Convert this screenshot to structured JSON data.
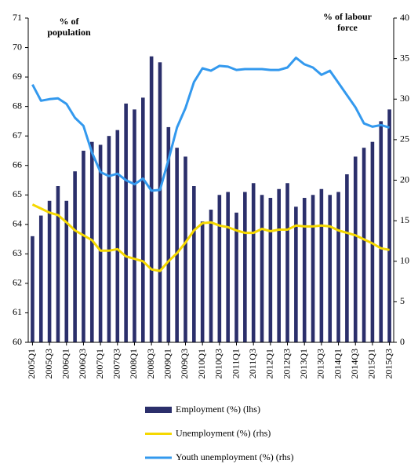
{
  "chart_data": {
    "type": "combo",
    "y_label": "% of population",
    "y2_label": "% of labour force",
    "categories": [
      "2005Q1",
      null,
      "2005Q3",
      null,
      "2006Q1",
      null,
      "2006Q3",
      null,
      "2007Q1",
      null,
      "2007Q3",
      null,
      "2008Q1",
      null,
      "2008Q3",
      null,
      "2009Q1",
      null,
      "2009Q3",
      null,
      "2010Q1",
      null,
      "2010Q3",
      null,
      "2011Q1",
      null,
      "2011Q3",
      null,
      "2012Q1",
      null,
      "2012Q3",
      null,
      "2013Q1",
      null,
      "2013Q3",
      null,
      "2014Q1",
      null,
      "2014Q3",
      null,
      "2015Q1",
      null,
      "2015Q3"
    ],
    "ylim": [
      60,
      71
    ],
    "yticks": [
      60,
      61,
      62,
      63,
      64,
      65,
      66,
      67,
      68,
      69,
      70,
      71
    ],
    "y2lim": [
      0,
      40
    ],
    "y2ticks": [
      0,
      5,
      10,
      15,
      20,
      25,
      30,
      35,
      40
    ],
    "grid": false,
    "series": [
      {
        "name": "Employment  (%) (lhs)",
        "type": "bar",
        "color": "#2b2f6b",
        "values": [
          63.6,
          64.3,
          64.8,
          65.3,
          64.8,
          65.8,
          66.5,
          66.8,
          66.7,
          67.0,
          67.2,
          68.1,
          67.9,
          68.3,
          69.7,
          69.5,
          67.3,
          66.6,
          66.3,
          65.3,
          64.1,
          64.5,
          65.0,
          65.1,
          64.4,
          65.1,
          65.4,
          65.0,
          64.9,
          65.2,
          65.4,
          64.6,
          64.9,
          65.0,
          65.2,
          65.0,
          65.1,
          65.7,
          66.3,
          66.6,
          66.8,
          67.5,
          67.9
        ]
      },
      {
        "name": "Unemployment (%) (rhs)",
        "type": "line",
        "axis": "y2",
        "color": "#f5d800",
        "values": [
          17.0,
          16.5,
          16.0,
          15.7,
          14.8,
          13.8,
          13.2,
          12.6,
          11.3,
          11.3,
          11.5,
          10.6,
          10.3,
          10.0,
          9.0,
          8.8,
          10.0,
          11.0,
          12.3,
          13.8,
          14.7,
          14.8,
          14.4,
          14.2,
          13.8,
          13.5,
          13.5,
          14.0,
          13.7,
          13.9,
          13.9,
          14.4,
          14.3,
          14.3,
          14.4,
          14.3,
          13.8,
          13.5,
          13.2,
          12.7,
          12.2,
          11.6,
          11.4
        ]
      },
      {
        "name": "Youth unemployment (%) (rhs)",
        "type": "line",
        "axis": "y2",
        "color": "#3399ee",
        "values": [
          31.8,
          29.8,
          30.0,
          30.1,
          29.4,
          27.7,
          26.7,
          23.4,
          21.0,
          20.5,
          20.8,
          20.0,
          19.5,
          20.2,
          18.7,
          18.8,
          22.5,
          26.5,
          28.9,
          32.1,
          33.8,
          33.5,
          34.1,
          34.0,
          33.6,
          33.7,
          33.7,
          33.7,
          33.6,
          33.6,
          33.9,
          35.1,
          34.3,
          33.9,
          33.0,
          33.5,
          32.0,
          30.5,
          29.0,
          27.0,
          26.6,
          26.8,
          26.5
        ]
      }
    ]
  }
}
